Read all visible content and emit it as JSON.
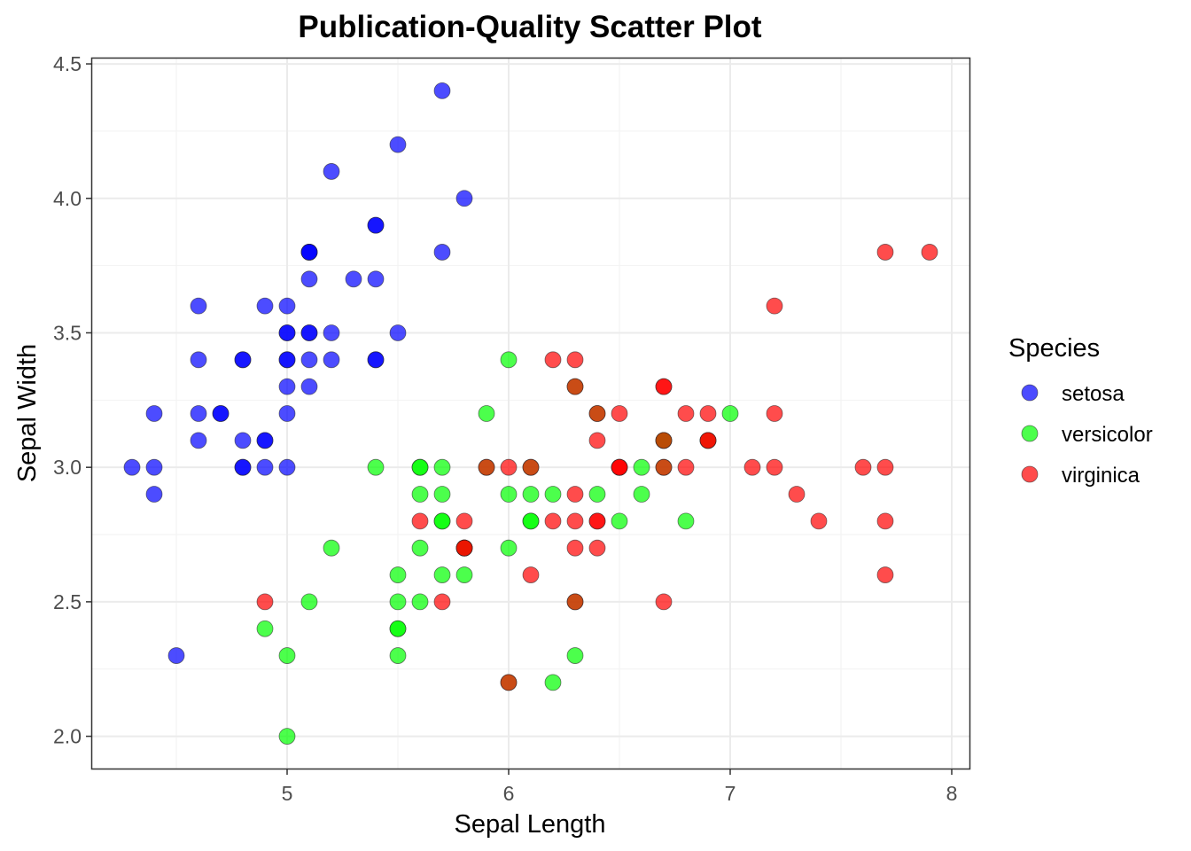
{
  "chart_data": {
    "type": "scatter",
    "title": "Publication-Quality Scatter Plot",
    "xlabel": "Sepal Length",
    "ylabel": "Sepal Width",
    "xlim": [
      4.12,
      8.08
    ],
    "ylim": [
      1.88,
      4.52
    ],
    "xticks": [
      5,
      6,
      7,
      8
    ],
    "xtick_labels": [
      "5",
      "6",
      "7",
      "8"
    ],
    "yticks": [
      2.0,
      2.5,
      3.0,
      3.5,
      4.0,
      4.5
    ],
    "ytick_labels": [
      "2.0",
      "2.5",
      "3.0",
      "3.5",
      "4.0",
      "4.5"
    ],
    "grid": true,
    "legend": {
      "title": "Species",
      "position": "right"
    },
    "series": [
      {
        "name": "setosa",
        "color": "#0000ff",
        "x": [
          5.1,
          4.9,
          4.7,
          4.6,
          5.0,
          5.4,
          4.6,
          5.0,
          4.4,
          4.9,
          5.4,
          4.8,
          4.8,
          4.3,
          5.8,
          5.7,
          5.4,
          5.1,
          5.7,
          5.1,
          5.4,
          5.1,
          4.6,
          5.1,
          4.8,
          5.0,
          5.0,
          5.2,
          5.2,
          4.7,
          4.8,
          5.4,
          5.2,
          5.5,
          4.9,
          5.0,
          5.5,
          4.9,
          4.4,
          5.1,
          5.0,
          4.5,
          4.4,
          5.0,
          5.1,
          4.8,
          5.1,
          4.6,
          5.3,
          5.0
        ],
        "y": [
          3.5,
          3.0,
          3.2,
          3.1,
          3.6,
          3.9,
          3.4,
          3.4,
          2.9,
          3.1,
          3.7,
          3.4,
          3.0,
          3.0,
          4.0,
          4.4,
          3.9,
          3.5,
          3.8,
          3.8,
          3.4,
          3.7,
          3.6,
          3.3,
          3.4,
          3.0,
          3.4,
          3.5,
          3.4,
          3.2,
          3.1,
          3.4,
          4.1,
          4.2,
          3.1,
          3.2,
          3.5,
          3.6,
          3.0,
          3.4,
          3.5,
          2.3,
          3.2,
          3.5,
          3.8,
          3.0,
          3.8,
          3.2,
          3.7,
          3.3
        ]
      },
      {
        "name": "versicolor",
        "color": "#00ff00",
        "x": [
          7.0,
          6.4,
          6.9,
          5.5,
          6.5,
          5.7,
          6.3,
          4.9,
          6.6,
          5.2,
          5.0,
          5.9,
          6.0,
          6.1,
          5.6,
          6.7,
          5.6,
          5.8,
          6.2,
          5.6,
          5.9,
          6.1,
          6.3,
          6.1,
          6.4,
          6.6,
          6.8,
          6.7,
          6.0,
          5.7,
          5.5,
          5.5,
          5.8,
          6.0,
          5.4,
          6.0,
          6.7,
          6.3,
          5.6,
          5.5,
          5.5,
          6.1,
          5.8,
          5.0,
          5.6,
          5.7,
          5.7,
          6.2,
          5.1,
          5.7
        ],
        "y": [
          3.2,
          3.2,
          3.1,
          2.3,
          2.8,
          2.8,
          3.3,
          2.4,
          2.9,
          2.7,
          2.0,
          3.0,
          2.2,
          2.9,
          2.9,
          3.1,
          3.0,
          2.7,
          2.2,
          2.5,
          3.2,
          2.8,
          2.5,
          2.8,
          2.9,
          3.0,
          2.8,
          3.0,
          2.9,
          2.6,
          2.4,
          2.4,
          2.7,
          2.7,
          3.0,
          3.4,
          3.1,
          2.3,
          3.0,
          2.5,
          2.6,
          3.0,
          2.6,
          2.3,
          2.7,
          3.0,
          2.9,
          2.9,
          2.5,
          2.8
        ]
      },
      {
        "name": "virginica",
        "color": "#ff0000",
        "x": [
          6.3,
          5.8,
          7.1,
          6.3,
          6.5,
          7.6,
          4.9,
          7.3,
          6.7,
          7.2,
          6.5,
          6.4,
          6.8,
          5.7,
          5.8,
          6.4,
          6.5,
          7.7,
          7.7,
          6.0,
          6.9,
          5.6,
          7.7,
          6.3,
          6.7,
          7.2,
          6.2,
          6.1,
          6.4,
          7.2,
          7.4,
          7.9,
          6.4,
          6.3,
          6.1,
          7.7,
          6.3,
          6.4,
          6.0,
          6.9,
          6.7,
          6.9,
          5.8,
          6.8,
          6.7,
          6.7,
          6.3,
          6.5,
          6.2,
          5.9
        ],
        "y": [
          3.3,
          2.7,
          3.0,
          2.9,
          3.0,
          3.0,
          2.5,
          2.9,
          2.5,
          3.6,
          3.2,
          2.7,
          3.0,
          2.5,
          2.8,
          3.2,
          3.0,
          3.8,
          2.6,
          2.2,
          3.2,
          2.8,
          2.8,
          2.7,
          3.3,
          3.2,
          2.8,
          3.0,
          2.8,
          3.0,
          2.8,
          3.8,
          2.8,
          2.8,
          2.6,
          3.0,
          3.4,
          3.1,
          3.0,
          3.1,
          3.1,
          3.1,
          2.7,
          3.2,
          3.3,
          3.0,
          2.5,
          3.0,
          3.4,
          3.0
        ]
      }
    ]
  }
}
